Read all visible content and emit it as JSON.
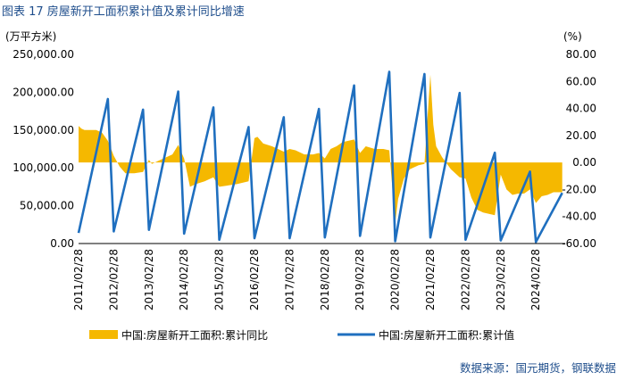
{
  "figure": {
    "title": "图表 17  房屋新开工面积累计值及累计同比增速",
    "source": "数据来源：国元期货，钢联数据"
  },
  "colors": {
    "area": "#F5B800",
    "line": "#1F6FBF",
    "text": "#1f4e8c"
  },
  "chart_data": {
    "type": "area+line",
    "left_axis": {
      "unit_label": "(万平方米)",
      "ylim": [
        0,
        250000
      ],
      "ticks": [
        "0.00",
        "50,000.00",
        "100,000.00",
        "150,000.00",
        "200,000.00",
        "250,000.00"
      ]
    },
    "right_axis": {
      "unit_label": "(%)",
      "ylim": [
        -60,
        80
      ],
      "ticks": [
        "-60.00",
        "-40.00",
        "-20.00",
        "0.00",
        "20.00",
        "40.00",
        "60.00",
        "80.00"
      ]
    },
    "x_tick_labels": [
      "2011/02/28",
      "2012/02/28",
      "2013/02/28",
      "2014/02/28",
      "2015/02/28",
      "2016/02/28",
      "2017/02/28",
      "2018/02/28",
      "2019/02/28",
      "2020/02/28",
      "2021/02/28",
      "2022/02/28",
      "2023/02/28",
      "2024/02/28"
    ],
    "x_range": [
      "2011-02",
      "2024-12"
    ],
    "series": [
      {
        "name": "中国:房屋新开工面积:累计值",
        "axis": "left",
        "style": "line",
        "points": [
          [
            "2011-02",
            14000
          ],
          [
            "2011-12",
            191000
          ],
          [
            "2012-02",
            16000
          ],
          [
            "2012-12",
            177000
          ],
          [
            "2013-02",
            18000
          ],
          [
            "2013-12",
            201000
          ],
          [
            "2014-02",
            13000
          ],
          [
            "2014-12",
            180000
          ],
          [
            "2015-02",
            5000
          ],
          [
            "2015-12",
            154000
          ],
          [
            "2016-02",
            7000
          ],
          [
            "2016-12",
            167000
          ],
          [
            "2017-02",
            7000
          ],
          [
            "2017-12",
            178000
          ],
          [
            "2018-02",
            8000
          ],
          [
            "2018-12",
            209000
          ],
          [
            "2019-02",
            10000
          ],
          [
            "2019-12",
            227000
          ],
          [
            "2020-02",
            3000
          ],
          [
            "2020-12",
            224000
          ],
          [
            "2021-02",
            8000
          ],
          [
            "2021-12",
            199000
          ],
          [
            "2022-02",
            5000
          ],
          [
            "2022-12",
            120000
          ],
          [
            "2023-02",
            4000
          ],
          [
            "2023-12",
            95000
          ],
          [
            "2024-02",
            2000
          ],
          [
            "2024-11",
            67000
          ]
        ]
      },
      {
        "name": "中国:房屋新开工面积:累计同比",
        "axis": "right",
        "style": "area",
        "points": [
          [
            "2011-02",
            27
          ],
          [
            "2011-03",
            25
          ],
          [
            "2011-04",
            24
          ],
          [
            "2011-06",
            24
          ],
          [
            "2011-08",
            24
          ],
          [
            "2011-10",
            22
          ],
          [
            "2011-12",
            16
          ],
          [
            "2012-02",
            5
          ],
          [
            "2012-04",
            -3
          ],
          [
            "2012-06",
            -8
          ],
          [
            "2012-09",
            -8
          ],
          [
            "2012-12",
            -7
          ],
          [
            "2013-02",
            2
          ],
          [
            "2013-03",
            -1
          ],
          [
            "2013-05",
            1
          ],
          [
            "2013-08",
            4
          ],
          [
            "2013-10",
            6
          ],
          [
            "2013-12",
            13
          ],
          [
            "2014-02",
            3
          ],
          [
            "2014-04",
            -18
          ],
          [
            "2014-06",
            -16
          ],
          [
            "2014-09",
            -14
          ],
          [
            "2014-12",
            -11
          ],
          [
            "2015-02",
            -18
          ],
          [
            "2015-05",
            -17
          ],
          [
            "2015-08",
            -16
          ],
          [
            "2015-12",
            -14
          ],
          [
            "2016-02",
            18
          ],
          [
            "2016-03",
            19
          ],
          [
            "2016-05",
            14
          ],
          [
            "2016-08",
            12
          ],
          [
            "2016-12",
            8
          ],
          [
            "2017-02",
            10
          ],
          [
            "2017-04",
            9
          ],
          [
            "2017-07",
            6
          ],
          [
            "2017-10",
            6
          ],
          [
            "2017-12",
            7
          ],
          [
            "2018-02",
            3
          ],
          [
            "2018-04",
            10
          ],
          [
            "2018-06",
            12
          ],
          [
            "2018-08",
            15
          ],
          [
            "2018-10",
            16
          ],
          [
            "2018-12",
            17
          ],
          [
            "2019-02",
            7
          ],
          [
            "2019-04",
            12
          ],
          [
            "2019-07",
            10
          ],
          [
            "2019-10",
            10
          ],
          [
            "2019-12",
            9
          ],
          [
            "2020-02",
            -45
          ],
          [
            "2020-03",
            -27
          ],
          [
            "2020-05",
            -12
          ],
          [
            "2020-07",
            -5
          ],
          [
            "2020-10",
            -2
          ],
          [
            "2020-12",
            -1
          ],
          [
            "2021-02",
            65
          ],
          [
            "2021-03",
            28
          ],
          [
            "2021-04",
            12
          ],
          [
            "2021-06",
            4
          ],
          [
            "2021-09",
            -5
          ],
          [
            "2021-12",
            -11
          ],
          [
            "2022-02",
            -12
          ],
          [
            "2022-04",
            -26
          ],
          [
            "2022-06",
            -35
          ],
          [
            "2022-08",
            -37
          ],
          [
            "2022-10",
            -38
          ],
          [
            "2022-12",
            -39
          ],
          [
            "2023-02",
            -9
          ],
          [
            "2023-04",
            -20
          ],
          [
            "2023-06",
            -24
          ],
          [
            "2023-08",
            -23
          ],
          [
            "2023-10",
            -23
          ],
          [
            "2023-12",
            -20
          ],
          [
            "2024-02",
            -30
          ],
          [
            "2024-04",
            -25
          ],
          [
            "2024-06",
            -24
          ],
          [
            "2024-08",
            -22
          ],
          [
            "2024-11",
            -22
          ]
        ]
      }
    ],
    "legend": {
      "placement": "bottom",
      "entries": [
        "中国:房屋新开工面积:累计同比",
        "中国:房屋新开工面积:累计值"
      ]
    },
    "grid": false
  }
}
